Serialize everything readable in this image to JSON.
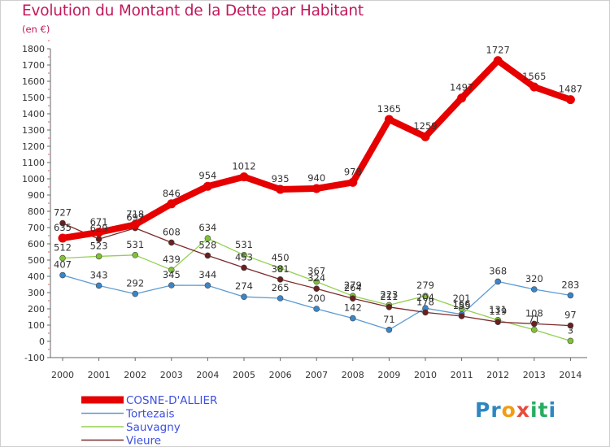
{
  "header": {
    "title": "Evolution du Montant de la Dette par Habitant",
    "unit": "(en €)"
  },
  "logo": {
    "text": "Proxiti",
    "letters": [
      {
        "ch": "P",
        "color": "#2e86c1"
      },
      {
        "ch": "r",
        "color": "#2e86c1"
      },
      {
        "ch": "o",
        "color": "#f39c12"
      },
      {
        "ch": "x",
        "color": "#e74c3c"
      },
      {
        "ch": "i",
        "color": "#27ae60"
      },
      {
        "ch": "t",
        "color": "#27ae60"
      },
      {
        "ch": "i",
        "color": "#2e86c1"
      }
    ]
  },
  "chart_data": {
    "type": "line",
    "title": "Evolution du Montant de la Dette par Habitant",
    "subtitle": "(en €)",
    "x": [
      "2000",
      "2001",
      "2002",
      "2003",
      "2004",
      "2005",
      "2006",
      "2007",
      "2008",
      "2009",
      "2010",
      "2011",
      "2012",
      "2013",
      "2014"
    ],
    "ylim": [
      -100,
      1800
    ],
    "yticks": [
      -100,
      0,
      100,
      200,
      300,
      400,
      500,
      600,
      700,
      800,
      900,
      1000,
      1100,
      1200,
      1300,
      1400,
      1500,
      1600,
      1700,
      1800
    ],
    "grid": false,
    "legend_position": "bottom-left",
    "series": [
      {
        "name": "COSNE-D'ALLIER",
        "color": "#e60000",
        "marker": "#e60000",
        "bold": true,
        "values": [
          635,
          671,
          718,
          846,
          954,
          1012,
          935,
          940,
          978,
          1365,
          1259,
          1497,
          1727,
          1565,
          1487
        ]
      },
      {
        "name": "Tortezais",
        "color": "#5b9bd5",
        "marker": "#3a85c8",
        "values": [
          407,
          343,
          292,
          345,
          344,
          274,
          265,
          200,
          142,
          71,
          204,
          166,
          368,
          320,
          283
        ]
      },
      {
        "name": "Sauvagny",
        "color": "#92d050",
        "marker": "#7fc238",
        "values": [
          512,
          523,
          531,
          439,
          634,
          531,
          450,
          367,
          279,
          223,
          279,
          201,
          131,
          71,
          3
        ]
      },
      {
        "name": "Vieure",
        "color": "#7b2a2a",
        "marker": "#6a1f1f",
        "values": [
          727,
          629,
          697,
          608,
          528,
          453,
          381,
          324,
          264,
          211,
          178,
          155,
          119,
          108,
          97
        ]
      }
    ]
  }
}
